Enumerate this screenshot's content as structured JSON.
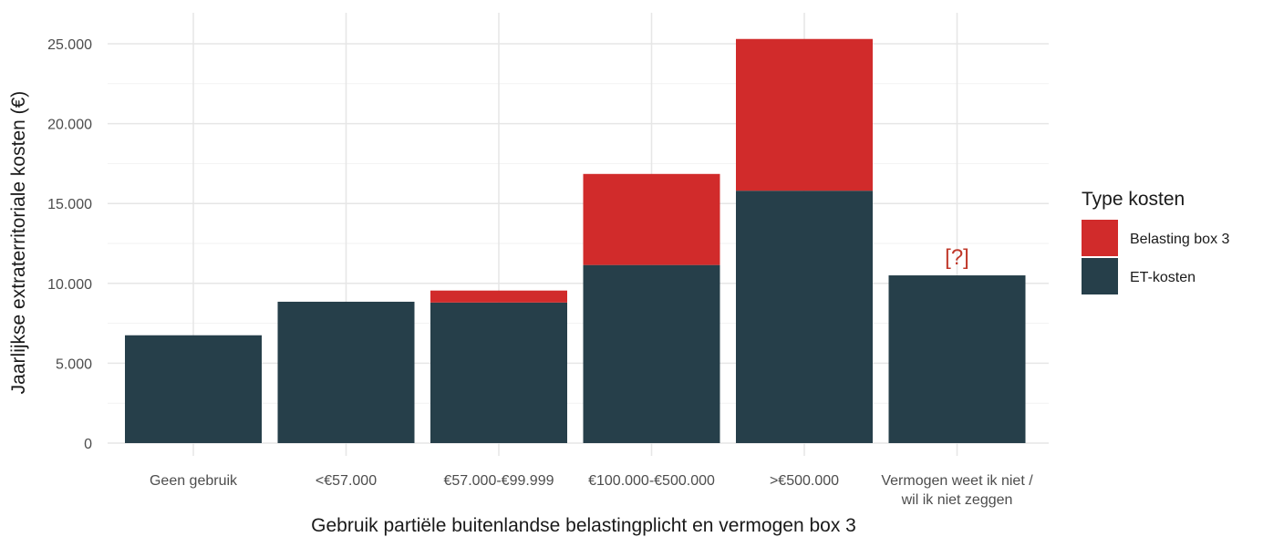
{
  "chart_data": {
    "type": "bar",
    "stacked": true,
    "categories": [
      [
        "Geen gebruik"
      ],
      [
        "<€57.000"
      ],
      [
        "€57.000-€99.999"
      ],
      [
        "€100.000-€500.000"
      ],
      [
        ">€500.000"
      ],
      [
        "Vermogen weet ik niet /",
        "wil ik niet zeggen"
      ]
    ],
    "series": [
      {
        "name": "ET-kosten",
        "color": "#263f4a",
        "values": [
          6750,
          8850,
          8800,
          11150,
          15800,
          10500
        ]
      },
      {
        "name": "Belasting box 3",
        "color": "#d12b2b",
        "values": [
          0,
          0,
          750,
          5700,
          9500,
          0
        ]
      }
    ],
    "xlabel": "Gebruik partiële buitenlandse belastingplicht en vermogen box 3",
    "ylabel": "Jaarlijkse extraterritoriale kosten (€)",
    "ylim": [
      0,
      26000
    ],
    "yticks": [
      0,
      5000,
      10000,
      15000,
      20000,
      25000
    ],
    "ytick_labels": [
      "0",
      "5.000",
      "10.000",
      "15.000",
      "20.000",
      "25.000"
    ],
    "grid": true,
    "legend": {
      "title": "Type kosten",
      "placement": "right",
      "entries": [
        "Belasting box 3",
        "ET-kosten"
      ]
    },
    "annotations": [
      {
        "category_index": 5,
        "text": "[?]",
        "color": "#c0392b"
      }
    ]
  }
}
